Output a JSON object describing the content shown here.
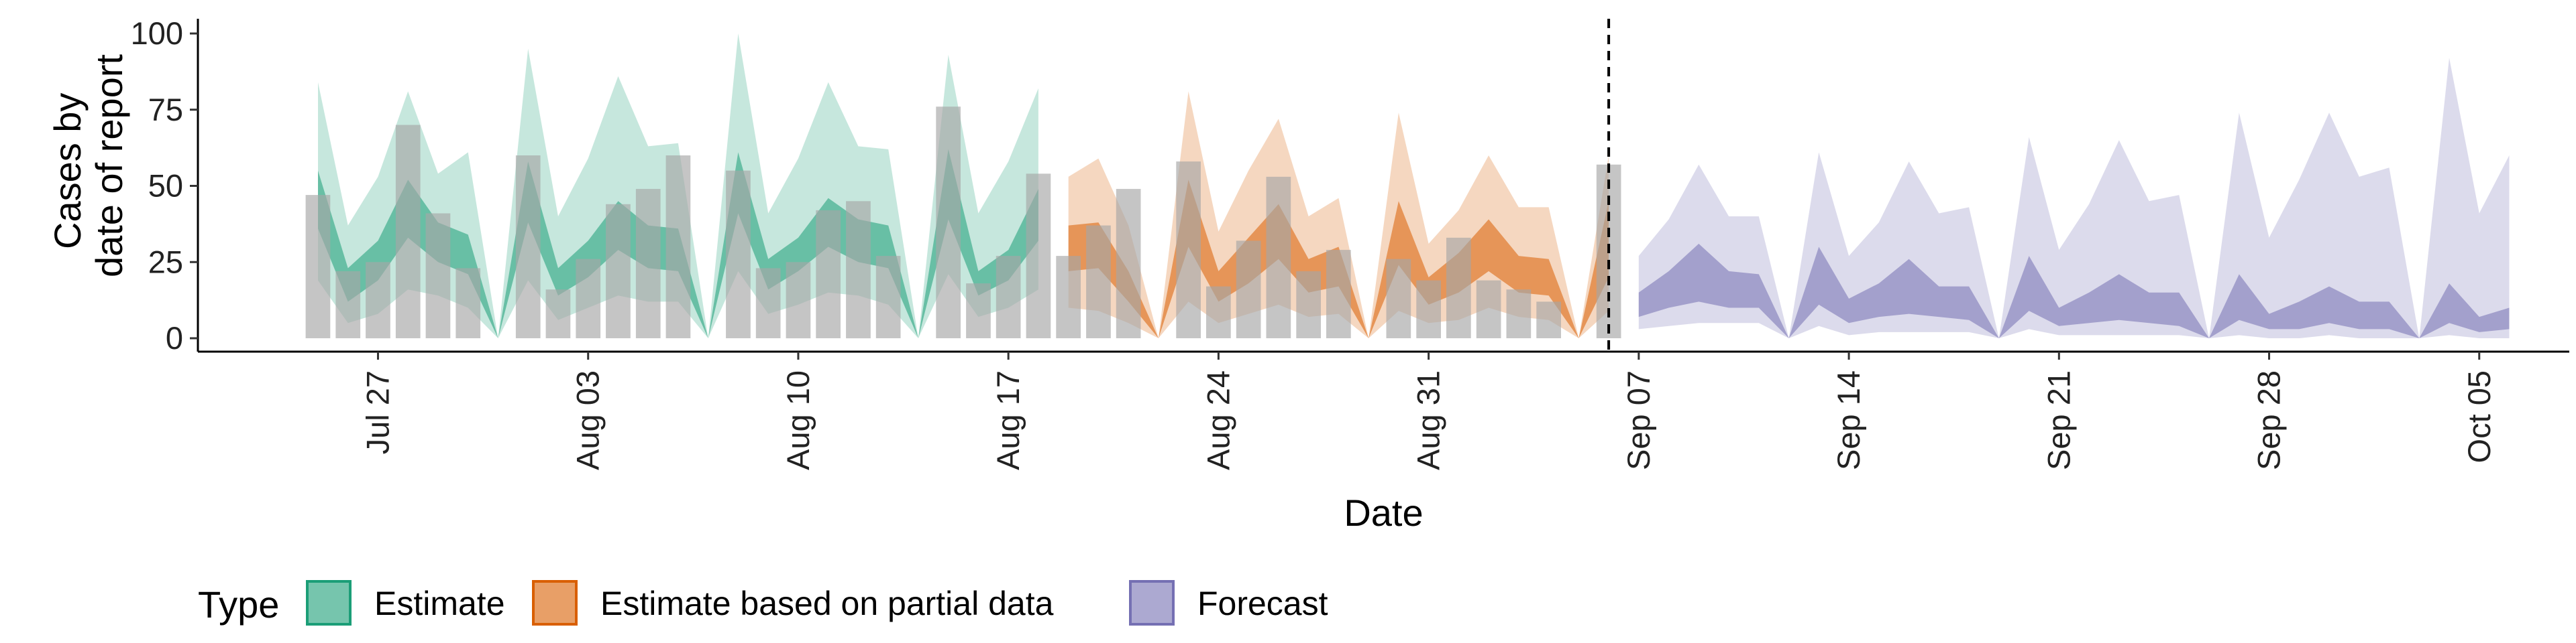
{
  "chart_data": {
    "type": "area",
    "xlabel": "Date",
    "ylabel_lines": [
      "Cases by",
      "date of report"
    ],
    "ylim": [
      0,
      100
    ],
    "yticks": [
      0,
      25,
      50,
      75,
      100
    ],
    "xlim": [
      "2021-07-21",
      "2021-10-08"
    ],
    "xticks": [
      {
        "date": "2021-07-27",
        "label": "Jul 27"
      },
      {
        "date": "2021-08-03",
        "label": "Aug 03"
      },
      {
        "date": "2021-08-10",
        "label": "Aug 10"
      },
      {
        "date": "2021-08-17",
        "label": "Aug 17"
      },
      {
        "date": "2021-08-24",
        "label": "Aug 24"
      },
      {
        "date": "2021-08-31",
        "label": "Aug 31"
      },
      {
        "date": "2021-09-07",
        "label": "Sep 07"
      },
      {
        "date": "2021-09-14",
        "label": "Sep 14"
      },
      {
        "date": "2021-09-21",
        "label": "Sep 21"
      },
      {
        "date": "2021-09-28",
        "label": "Sep 28"
      },
      {
        "date": "2021-10-05",
        "label": "Oct 05"
      }
    ],
    "forecast_start_line": "2021-09-06",
    "legend": {
      "title": "Type",
      "position": "bottom",
      "items": [
        {
          "label": "Estimate",
          "color": "#1b9e77"
        },
        {
          "label": "Estimate based on partial data",
          "color": "#d95f02"
        },
        {
          "label": "Forecast",
          "color": "#7570b3"
        }
      ]
    },
    "bars_color": "#a6a6a6",
    "reported_cases": [
      {
        "date": "2021-07-25",
        "value": 47
      },
      {
        "date": "2021-07-26",
        "value": 22
      },
      {
        "date": "2021-07-27",
        "value": 25
      },
      {
        "date": "2021-07-28",
        "value": 70
      },
      {
        "date": "2021-07-29",
        "value": 41
      },
      {
        "date": "2021-07-30",
        "value": 23
      },
      {
        "date": "2021-08-01",
        "value": 60
      },
      {
        "date": "2021-08-02",
        "value": 16
      },
      {
        "date": "2021-08-03",
        "value": 26
      },
      {
        "date": "2021-08-04",
        "value": 44
      },
      {
        "date": "2021-08-05",
        "value": 49
      },
      {
        "date": "2021-08-06",
        "value": 60
      },
      {
        "date": "2021-08-08",
        "value": 55
      },
      {
        "date": "2021-08-09",
        "value": 23
      },
      {
        "date": "2021-08-10",
        "value": 25
      },
      {
        "date": "2021-08-11",
        "value": 42
      },
      {
        "date": "2021-08-12",
        "value": 45
      },
      {
        "date": "2021-08-13",
        "value": 27
      },
      {
        "date": "2021-08-15",
        "value": 76
      },
      {
        "date": "2021-08-16",
        "value": 18
      },
      {
        "date": "2021-08-17",
        "value": 27
      },
      {
        "date": "2021-08-18",
        "value": 54
      },
      {
        "date": "2021-08-19",
        "value": 27
      },
      {
        "date": "2021-08-20",
        "value": 37
      },
      {
        "date": "2021-08-21",
        "value": 49
      },
      {
        "date": "2021-08-23",
        "value": 58
      },
      {
        "date": "2021-08-24",
        "value": 17
      },
      {
        "date": "2021-08-25",
        "value": 32
      },
      {
        "date": "2021-08-26",
        "value": 53
      },
      {
        "date": "2021-08-27",
        "value": 22
      },
      {
        "date": "2021-08-28",
        "value": 29
      },
      {
        "date": "2021-08-30",
        "value": 26
      },
      {
        "date": "2021-08-31",
        "value": 19
      },
      {
        "date": "2021-09-01",
        "value": 33
      },
      {
        "date": "2021-09-02",
        "value": 19
      },
      {
        "date": "2021-09-03",
        "value": 16
      },
      {
        "date": "2021-09-04",
        "value": 12
      },
      {
        "date": "2021-09-06",
        "value": 57
      }
    ],
    "series": [
      {
        "name": "Estimate",
        "color": "#1b9e77",
        "x": [
          "2021-07-25",
          "2021-07-26",
          "2021-07-27",
          "2021-07-28",
          "2021-07-29",
          "2021-07-30",
          "2021-07-31",
          "2021-08-01",
          "2021-08-02",
          "2021-08-03",
          "2021-08-04",
          "2021-08-05",
          "2021-08-06",
          "2021-08-07",
          "2021-08-08",
          "2021-08-09",
          "2021-08-10",
          "2021-08-11",
          "2021-08-12",
          "2021-08-13",
          "2021-08-14",
          "2021-08-15",
          "2021-08-16",
          "2021-08-17",
          "2021-08-18"
        ],
        "outer_upper": [
          84,
          37,
          53,
          81,
          54,
          61,
          0,
          95,
          40,
          59,
          86,
          63,
          64,
          0,
          100,
          41,
          59,
          84,
          63,
          62,
          0,
          93,
          41,
          58,
          82
        ],
        "inner_upper": [
          55,
          23,
          32,
          52,
          38,
          34,
          0,
          58,
          23,
          32,
          45,
          37,
          36,
          0,
          61,
          26,
          33,
          46,
          39,
          37,
          0,
          62,
          22,
          29,
          49
        ],
        "inner_lower": [
          36,
          12,
          19,
          33,
          25,
          21,
          0,
          38,
          14,
          20,
          29,
          23,
          22,
          0,
          41,
          16,
          22,
          30,
          25,
          23,
          0,
          39,
          14,
          19,
          32
        ],
        "outer_lower": [
          19,
          5,
          8,
          16,
          14,
          10,
          0,
          19,
          6,
          10,
          14,
          12,
          12,
          0,
          22,
          8,
          11,
          15,
          14,
          11,
          0,
          21,
          7,
          10,
          16
        ]
      },
      {
        "name": "Estimate based on partial data",
        "color": "#d95f02",
        "x": [
          "2021-08-19",
          "2021-08-20",
          "2021-08-21",
          "2021-08-22",
          "2021-08-23",
          "2021-08-24",
          "2021-08-25",
          "2021-08-26",
          "2021-08-27",
          "2021-08-28",
          "2021-08-29",
          "2021-08-30",
          "2021-08-31",
          "2021-09-01",
          "2021-09-02",
          "2021-09-03",
          "2021-09-04",
          "2021-09-05",
          "2021-09-06"
        ],
        "outer_upper": [
          53,
          59,
          37,
          0,
          81,
          35,
          55,
          72,
          40,
          46,
          0,
          74,
          31,
          42,
          60,
          43,
          43,
          0,
          60
        ],
        "inner_upper": [
          37,
          38,
          22,
          0,
          52,
          22,
          33,
          44,
          26,
          30,
          0,
          45,
          20,
          28,
          39,
          27,
          26,
          0,
          45
        ],
        "inner_lower": [
          22,
          23,
          12,
          0,
          30,
          12,
          18,
          26,
          15,
          17,
          0,
          24,
          11,
          15,
          22,
          15,
          14,
          0,
          20
        ],
        "outer_lower": [
          10,
          9,
          5,
          0,
          12,
          5,
          8,
          11,
          7,
          8,
          0,
          9,
          5,
          6,
          10,
          7,
          6,
          0,
          9
        ]
      },
      {
        "name": "Forecast",
        "color": "#7570b3",
        "x": [
          "2021-09-07",
          "2021-09-08",
          "2021-09-09",
          "2021-09-10",
          "2021-09-11",
          "2021-09-12",
          "2021-09-13",
          "2021-09-14",
          "2021-09-15",
          "2021-09-16",
          "2021-09-17",
          "2021-09-18",
          "2021-09-19",
          "2021-09-20",
          "2021-09-21",
          "2021-09-22",
          "2021-09-23",
          "2021-09-24",
          "2021-09-25",
          "2021-09-26",
          "2021-09-27",
          "2021-09-28",
          "2021-09-29",
          "2021-09-30",
          "2021-10-01",
          "2021-10-02",
          "2021-10-03",
          "2021-10-04",
          "2021-10-05",
          "2021-10-06"
        ],
        "outer_upper": [
          27,
          39,
          57,
          40,
          40,
          0,
          61,
          27,
          38,
          58,
          41,
          43,
          0,
          66,
          29,
          44,
          65,
          45,
          47,
          0,
          74,
          33,
          52,
          74,
          53,
          56,
          0,
          92,
          41,
          60
        ],
        "inner_upper": [
          15,
          22,
          31,
          22,
          21,
          0,
          30,
          13,
          18,
          26,
          17,
          17,
          0,
          27,
          10,
          15,
          21,
          15,
          15,
          0,
          21,
          8,
          12,
          17,
          12,
          12,
          0,
          18,
          7,
          10
        ],
        "inner_lower": [
          7,
          10,
          12,
          10,
          10,
          0,
          11,
          5,
          7,
          8,
          7,
          6,
          0,
          9,
          4,
          5,
          6,
          5,
          4,
          0,
          6,
          3,
          3,
          5,
          3,
          3,
          0,
          5,
          2,
          3
        ],
        "outer_lower": [
          3,
          4,
          5,
          5,
          5,
          0,
          4,
          1,
          2,
          2,
          2,
          2,
          0,
          3,
          1,
          1,
          1,
          1,
          1,
          0,
          1,
          0,
          0,
          1,
          0,
          0,
          0,
          1,
          0,
          0
        ]
      }
    ]
  }
}
